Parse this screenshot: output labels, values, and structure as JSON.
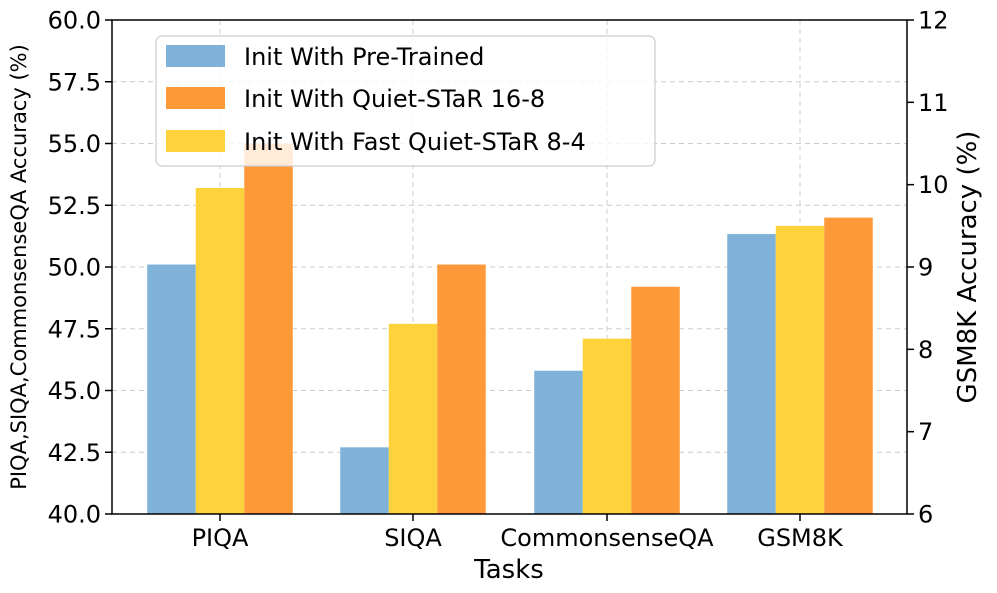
{
  "chart_data": {
    "type": "bar",
    "categories": [
      "PIQA",
      "SIQA",
      "CommonsenseQA",
      "GSM8K"
    ],
    "xlabel": "Tasks",
    "ylabel_left": "PIQA,SIQA,CommonsenseQA Accuracy (%)",
    "ylabel_right": "GSM8K Accuracy (%)",
    "ylim_left": [
      40.0,
      60.0
    ],
    "ylim_right": [
      6,
      12
    ],
    "yticks_left": [
      "40.0",
      "42.5",
      "45.0",
      "47.5",
      "50.0",
      "52.5",
      "55.0",
      "57.5",
      "60.0"
    ],
    "yticks_right": [
      "6",
      "7",
      "8",
      "9",
      "10",
      "11",
      "12"
    ],
    "grid": true,
    "legend_position": "top-left",
    "series": [
      {
        "name": "Init With Pre-Trained",
        "color": "#7eb2d8",
        "axes": [
          "left",
          "left",
          "left",
          "right"
        ],
        "values": [
          50.1,
          42.7,
          45.8,
          9.4
        ]
      },
      {
        "name": "Init With Fast Quiet-STaR 8-4",
        "color": "#fdd23a",
        "axes": [
          "left",
          "left",
          "left",
          "right"
        ],
        "values": [
          53.2,
          47.7,
          47.1,
          9.5
        ]
      },
      {
        "name": "Init With Quiet-STaR 16-8",
        "color": "#fd9939",
        "axes": [
          "left",
          "left",
          "left",
          "right"
        ],
        "values": [
          55.0,
          50.1,
          49.2,
          9.6
        ]
      }
    ],
    "legend": [
      "Init With Pre-Trained",
      "Init With Quiet-STaR 16-8",
      "Init With Fast Quiet-STaR 8-4"
    ]
  }
}
